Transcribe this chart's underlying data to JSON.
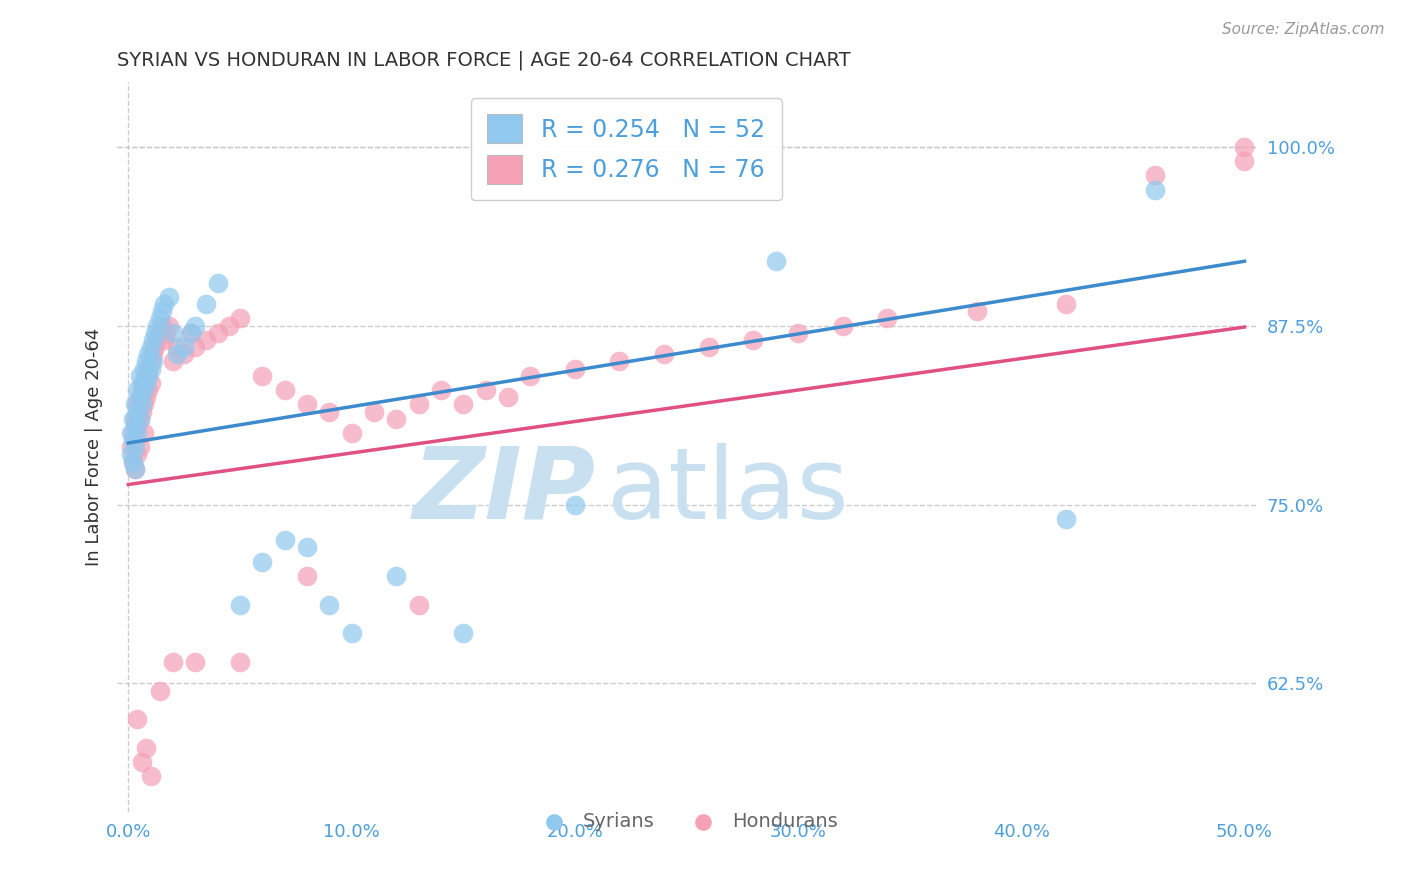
{
  "title": "SYRIAN VS HONDURAN IN LABOR FORCE | AGE 20-64 CORRELATION CHART",
  "source": "Source: ZipAtlas.com",
  "ylabel": "In Labor Force | Age 20-64",
  "xlim": [
    -0.005,
    0.505
  ],
  "ylim": [
    0.535,
    1.045
  ],
  "xticks": [
    0.0,
    0.1,
    0.2,
    0.3,
    0.4,
    0.5
  ],
  "xticklabels": [
    "0.0%",
    "10.0%",
    "20.0%",
    "30.0%",
    "40.0%",
    "50.0%"
  ],
  "yticks_right": [
    0.625,
    0.75,
    0.875,
    1.0
  ],
  "yticklabels_right": [
    "62.5%",
    "75.0%",
    "87.5%",
    "100.0%"
  ],
  "syrian_color": "#90C8EE",
  "honduran_color": "#F5A0B5",
  "syrian_line_color": "#3D8BCD",
  "honduran_line_color": "#E05080",
  "syrian_R": 0.254,
  "syrian_N": 52,
  "honduran_R": 0.276,
  "honduran_N": 76,
  "legend_label_syrian": "Syrians",
  "legend_label_honduran": "Hondurans",
  "syrian_x": [
    0.001,
    0.001,
    0.002,
    0.002,
    0.002,
    0.003,
    0.003,
    0.003,
    0.003,
    0.004,
    0.004,
    0.004,
    0.005,
    0.005,
    0.005,
    0.006,
    0.006,
    0.007,
    0.007,
    0.008,
    0.008,
    0.009,
    0.009,
    0.01,
    0.01,
    0.011,
    0.011,
    0.012,
    0.013,
    0.014,
    0.015,
    0.016,
    0.018,
    0.02,
    0.022,
    0.025,
    0.028,
    0.03,
    0.035,
    0.04,
    0.05,
    0.06,
    0.07,
    0.08,
    0.09,
    0.1,
    0.12,
    0.15,
    0.2,
    0.29,
    0.42,
    0.46
  ],
  "syrian_y": [
    0.8,
    0.785,
    0.81,
    0.795,
    0.78,
    0.82,
    0.805,
    0.79,
    0.775,
    0.83,
    0.815,
    0.8,
    0.84,
    0.825,
    0.81,
    0.835,
    0.82,
    0.845,
    0.83,
    0.85,
    0.835,
    0.855,
    0.84,
    0.86,
    0.845,
    0.865,
    0.85,
    0.87,
    0.875,
    0.88,
    0.885,
    0.89,
    0.895,
    0.87,
    0.855,
    0.86,
    0.87,
    0.875,
    0.89,
    0.905,
    0.68,
    0.71,
    0.725,
    0.72,
    0.68,
    0.66,
    0.7,
    0.66,
    0.75,
    0.92,
    0.74,
    0.97
  ],
  "honduran_x": [
    0.001,
    0.002,
    0.002,
    0.003,
    0.003,
    0.003,
    0.004,
    0.004,
    0.004,
    0.005,
    0.005,
    0.005,
    0.006,
    0.006,
    0.007,
    0.007,
    0.007,
    0.008,
    0.008,
    0.009,
    0.009,
    0.01,
    0.01,
    0.011,
    0.012,
    0.013,
    0.014,
    0.015,
    0.016,
    0.017,
    0.018,
    0.02,
    0.022,
    0.025,
    0.028,
    0.03,
    0.035,
    0.04,
    0.045,
    0.05,
    0.06,
    0.07,
    0.08,
    0.09,
    0.1,
    0.11,
    0.12,
    0.13,
    0.14,
    0.15,
    0.16,
    0.17,
    0.18,
    0.2,
    0.22,
    0.24,
    0.26,
    0.28,
    0.3,
    0.32,
    0.34,
    0.38,
    0.42,
    0.46,
    0.5,
    0.5,
    0.004,
    0.006,
    0.008,
    0.01,
    0.014,
    0.02,
    0.03,
    0.05,
    0.08,
    0.13
  ],
  "honduran_y": [
    0.79,
    0.8,
    0.78,
    0.81,
    0.795,
    0.775,
    0.82,
    0.805,
    0.785,
    0.825,
    0.81,
    0.79,
    0.83,
    0.815,
    0.835,
    0.82,
    0.8,
    0.84,
    0.825,
    0.845,
    0.83,
    0.85,
    0.835,
    0.855,
    0.86,
    0.865,
    0.87,
    0.875,
    0.865,
    0.87,
    0.875,
    0.85,
    0.86,
    0.855,
    0.87,
    0.86,
    0.865,
    0.87,
    0.875,
    0.88,
    0.84,
    0.83,
    0.82,
    0.815,
    0.8,
    0.815,
    0.81,
    0.82,
    0.83,
    0.82,
    0.83,
    0.825,
    0.84,
    0.845,
    0.85,
    0.855,
    0.86,
    0.865,
    0.87,
    0.875,
    0.88,
    0.885,
    0.89,
    0.98,
    1.0,
    0.99,
    0.6,
    0.57,
    0.58,
    0.56,
    0.62,
    0.64,
    0.64,
    0.64,
    0.7,
    0.68
  ],
  "background_color": "#FFFFFF",
  "grid_color": "#CCCCCC",
  "title_color": "#333333",
  "tick_color_blue": "#4D9FDB",
  "watermark_text1": "ZIP",
  "watermark_text2": "atlas",
  "watermark_color": "#C8E0F0",
  "watermark_fontsize": 72
}
